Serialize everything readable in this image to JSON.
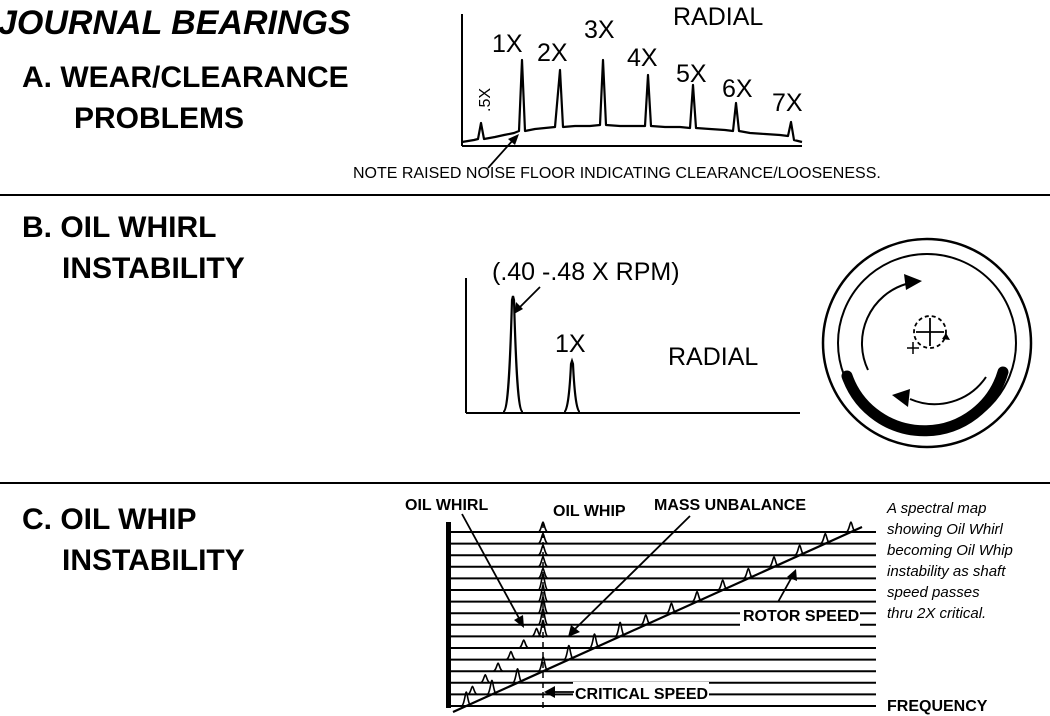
{
  "title": "JOURNAL BEARINGS",
  "section_a": {
    "heading_line1": "A. WEAR/CLEARANCE",
    "heading_line2": "PROBLEMS",
    "plot_label": "RADIAL",
    "peaks": [
      ".5X",
      "1X",
      "2X",
      "3X",
      "4X",
      "5X",
      "6X",
      "7X"
    ],
    "note": "NOTE RAISED NOISE FLOOR INDICATING CLEARANCE/LOOSENESS."
  },
  "section_b": {
    "heading_line1": "B. OIL WHIRL",
    "heading_line2": "INSTABILITY",
    "whirl_label": "(.40 -.48 X RPM)",
    "peak_label": "1X",
    "plot_label": "RADIAL"
  },
  "section_c": {
    "heading_line1": "C. OIL WHIP",
    "heading_line2": "INSTABILITY",
    "label_oil_whirl": "OIL WHIRL",
    "label_oil_whip": "OIL WHIP",
    "label_mass_unbalance": "MASS UNBALANCE",
    "label_rotor_speed": "ROTOR SPEED",
    "label_critical_speed": "CRITICAL SPEED",
    "label_frequency": "FREQUENCY",
    "caption": [
      "A spectral map",
      "showing Oil Whirl",
      "becoming Oil Whip",
      "instability as shaft",
      "speed passes",
      "thru 2X critical."
    ]
  }
}
